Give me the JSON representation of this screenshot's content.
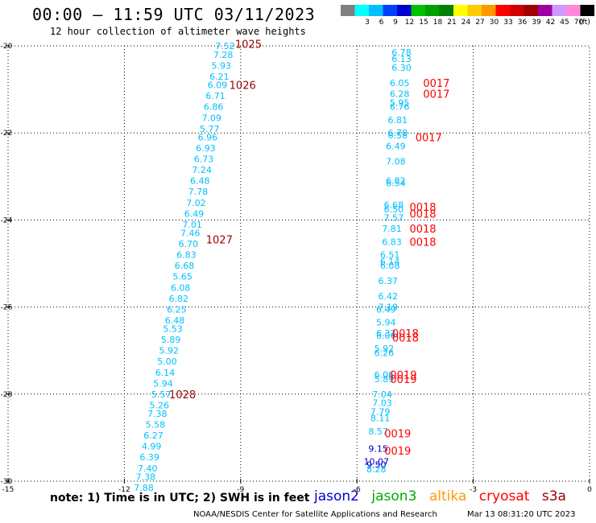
{
  "title": "00:00 — 11:59 UTC 03/11/2023",
  "subtitle": "12 hour collection of altimeter wave heights",
  "legend": {
    "unit": "(ft)",
    "items": [
      {
        "label": "",
        "color": "#808080"
      },
      {
        "label": "3",
        "color": "#00ffff"
      },
      {
        "label": "6",
        "color": "#00bfff"
      },
      {
        "label": "9",
        "color": "#0040ff"
      },
      {
        "label": "12",
        "color": "#0000cd"
      },
      {
        "label": "15",
        "color": "#00c000"
      },
      {
        "label": "18",
        "color": "#00a000"
      },
      {
        "label": "21",
        "color": "#008000"
      },
      {
        "label": "24",
        "color": "#ffff00"
      },
      {
        "label": "27",
        "color": "#ffcc00"
      },
      {
        "label": "30",
        "color": "#ff9900"
      },
      {
        "label": "33",
        "color": "#ff0000"
      },
      {
        "label": "36",
        "color": "#d00000"
      },
      {
        "label": "39",
        "color": "#a00000"
      },
      {
        "label": "42",
        "color": "#a000a0"
      },
      {
        "label": "45",
        "color": "#cc99ff"
      },
      {
        "label": "70",
        "color": "#ff88dd"
      },
      {
        "label": "",
        "color": "#000000"
      }
    ]
  },
  "note": "note: 1) Time is in UTC; 2) SWH is in feet",
  "satellites": [
    {
      "name": "jason2",
      "color": "#0000cc"
    },
    {
      "name": "jason3",
      "color": "#00aa00"
    },
    {
      "name": "altika",
      "color": "#ff9900"
    },
    {
      "name": "cryosat",
      "color": "#ff0000"
    },
    {
      "name": "s3a",
      "color": "#990000"
    }
  ],
  "footer_left": "NOAA/NESDIS Center for Satellite Applications and Research",
  "footer_right": "Mar 13 08:31:20 UTC 2023",
  "chart_data": {
    "type": "scatter",
    "xlim": [
      -15,
      0
    ],
    "ylim": [
      -30,
      -20
    ],
    "x_ticks": [
      -15,
      -12,
      -9,
      -6,
      -3,
      0
    ],
    "y_ticks": [
      -20,
      -22,
      -24,
      -26,
      -28,
      -30
    ],
    "grid": true,
    "pass_time_color": "#990000",
    "pass_time_color_b": "#ff0000",
    "swh_color": "#00bfff",
    "series": [
      {
        "points": [
          {
            "x": -9.4,
            "y": -20.0,
            "v": "7.52"
          },
          {
            "x": -9.45,
            "y": -20.2,
            "v": "7.28"
          },
          {
            "x": -9.5,
            "y": -20.45,
            "v": "5.93"
          },
          {
            "x": -9.55,
            "y": -20.7,
            "v": "6.21"
          },
          {
            "x": -9.6,
            "y": -20.9,
            "v": "6.09"
          },
          {
            "x": -9.65,
            "y": -21.15,
            "v": "6.71"
          },
          {
            "x": -9.7,
            "y": -21.4,
            "v": "6.86"
          },
          {
            "x": -9.75,
            "y": -21.65,
            "v": "7.09"
          },
          {
            "x": -9.8,
            "y": -21.9,
            "v": "5.77"
          },
          {
            "x": -9.85,
            "y": -22.1,
            "v": "6.96"
          },
          {
            "x": -9.9,
            "y": -22.35,
            "v": "6.93"
          },
          {
            "x": -9.95,
            "y": -22.6,
            "v": "6.73"
          },
          {
            "x": -10.0,
            "y": -22.85,
            "v": "7.24"
          },
          {
            "x": -10.05,
            "y": -23.1,
            "v": "6.48"
          },
          {
            "x": -10.1,
            "y": -23.35,
            "v": "7.78"
          },
          {
            "x": -10.15,
            "y": -23.6,
            "v": "7.02"
          },
          {
            "x": -10.2,
            "y": -23.85,
            "v": "6.49"
          },
          {
            "x": -10.25,
            "y": -24.1,
            "v": "7.01"
          },
          {
            "x": -10.3,
            "y": -24.3,
            "v": "7.46"
          },
          {
            "x": -10.35,
            "y": -24.55,
            "v": "6.70"
          },
          {
            "x": -10.4,
            "y": -24.8,
            "v": "6.83"
          },
          {
            "x": -10.45,
            "y": -25.05,
            "v": "6.68"
          },
          {
            "x": -10.5,
            "y": -25.3,
            "v": "5.65"
          },
          {
            "x": -10.55,
            "y": -25.55,
            "v": "6.08"
          },
          {
            "x": -10.6,
            "y": -25.8,
            "v": "6.82"
          },
          {
            "x": -10.65,
            "y": -26.05,
            "v": "6.25"
          },
          {
            "x": -10.7,
            "y": -26.3,
            "v": "6.48"
          },
          {
            "x": -10.75,
            "y": -26.5,
            "v": "5.53"
          },
          {
            "x": -10.8,
            "y": -26.75,
            "v": "5.89"
          },
          {
            "x": -10.85,
            "y": -27.0,
            "v": "5.92"
          },
          {
            "x": -10.9,
            "y": -27.25,
            "v": "5.00"
          },
          {
            "x": -10.95,
            "y": -27.5,
            "v": "6.14"
          },
          {
            "x": -11.0,
            "y": -27.75,
            "v": "5.94"
          },
          {
            "x": -11.05,
            "y": -28.0,
            "v": "5.57"
          },
          {
            "x": -11.1,
            "y": -28.25,
            "v": "5.26"
          },
          {
            "x": -11.15,
            "y": -28.45,
            "v": "7.38"
          },
          {
            "x": -11.2,
            "y": -28.7,
            "v": "5.58"
          },
          {
            "x": -11.25,
            "y": -28.95,
            "v": "6.27"
          },
          {
            "x": -11.3,
            "y": -29.2,
            "v": "4.99"
          },
          {
            "x": -11.35,
            "y": -29.45,
            "v": "6.39"
          },
          {
            "x": -11.4,
            "y": -29.7,
            "v": "7.40"
          },
          {
            "x": -11.45,
            "y": -29.9,
            "v": "7.38"
          },
          {
            "x": -11.5,
            "y": -30.15,
            "v": "7.88"
          }
        ]
      },
      {
        "points": [
          {
            "x": -4.85,
            "y": -20.15,
            "v": "6.78"
          },
          {
            "x": -4.85,
            "y": -20.3,
            "v": "6.13"
          },
          {
            "x": -4.85,
            "y": -20.5,
            "v": "6.30"
          },
          {
            "x": -4.9,
            "y": -20.85,
            "v": "6.05"
          },
          {
            "x": -4.9,
            "y": -21.1,
            "v": "6.28"
          },
          {
            "x": -4.9,
            "y": -21.3,
            "v": "5.95"
          },
          {
            "x": -4.9,
            "y": -21.4,
            "v": "6.76"
          },
          {
            "x": -4.95,
            "y": -21.7,
            "v": "6.81"
          },
          {
            "x": -4.95,
            "y": -22.0,
            "v": "6.78"
          },
          {
            "x": -4.95,
            "y": -22.05,
            "v": "6.58"
          },
          {
            "x": -5.0,
            "y": -22.3,
            "v": "6.49"
          },
          {
            "x": -5.0,
            "y": -22.65,
            "v": "7.08"
          },
          {
            "x": -5.0,
            "y": -23.1,
            "v": "6.82"
          },
          {
            "x": -5.0,
            "y": -23.15,
            "v": "6.54"
          },
          {
            "x": -5.05,
            "y": -23.65,
            "v": "6.68"
          },
          {
            "x": -5.05,
            "y": -23.75,
            "v": "6.50"
          },
          {
            "x": -5.05,
            "y": -23.95,
            "v": "7.57"
          },
          {
            "x": -5.1,
            "y": -24.2,
            "v": "7.81"
          },
          {
            "x": -5.1,
            "y": -24.5,
            "v": "6.83"
          },
          {
            "x": -5.15,
            "y": -24.8,
            "v": "6.51"
          },
          {
            "x": -5.15,
            "y": -24.95,
            "v": "6.14"
          },
          {
            "x": -5.15,
            "y": -25.05,
            "v": "6.08"
          },
          {
            "x": -5.2,
            "y": -25.4,
            "v": "6.37"
          },
          {
            "x": -5.2,
            "y": -25.75,
            "v": "6.42"
          },
          {
            "x": -5.2,
            "y": -26.0,
            "v": "7.19"
          },
          {
            "x": -5.25,
            "y": -26.05,
            "v": "6.49"
          },
          {
            "x": -5.25,
            "y": -26.35,
            "v": "5.94"
          },
          {
            "x": -5.25,
            "y": -26.6,
            "v": "6.32"
          },
          {
            "x": -5.25,
            "y": -26.65,
            "v": "6.06"
          },
          {
            "x": -5.3,
            "y": -26.95,
            "v": "5.92"
          },
          {
            "x": -5.3,
            "y": -27.05,
            "v": "6.26"
          },
          {
            "x": -5.3,
            "y": -27.55,
            "v": "6.06"
          },
          {
            "x": -5.3,
            "y": -27.65,
            "v": "5.89"
          },
          {
            "x": -5.35,
            "y": -28.0,
            "v": "7.04"
          },
          {
            "x": -5.35,
            "y": -28.2,
            "v": "7.03"
          },
          {
            "x": -5.4,
            "y": -28.4,
            "v": "7.79"
          },
          {
            "x": -5.4,
            "y": -28.55,
            "v": "8.11"
          },
          {
            "x": -5.45,
            "y": -28.85,
            "v": "8.57"
          },
          {
            "x": -5.45,
            "y": -29.25,
            "v": "9.15",
            "c": "#0000cd"
          },
          {
            "x": -5.5,
            "y": -29.55,
            "v": "10.07",
            "c": "#0000cd"
          },
          {
            "x": -5.5,
            "y": -29.62,
            "v": "9.50",
            "c": "#0000cd"
          },
          {
            "x": -5.5,
            "y": -29.72,
            "v": "8.28"
          }
        ]
      }
    ],
    "pass_times": [
      {
        "x": -8.8,
        "y": -19.95,
        "t": "1025",
        "c": "#990000"
      },
      {
        "x": -8.95,
        "y": -20.9,
        "t": "1026",
        "c": "#990000"
      },
      {
        "x": -9.55,
        "y": -24.45,
        "t": "1027",
        "c": "#990000"
      },
      {
        "x": -10.5,
        "y": -28.0,
        "t": "1028",
        "c": "#990000"
      },
      {
        "x": -3.95,
        "y": -20.85,
        "t": "0017",
        "c": "#ff0000"
      },
      {
        "x": -3.95,
        "y": -21.1,
        "t": "0017",
        "c": "#ff0000"
      },
      {
        "x": -4.15,
        "y": -22.1,
        "t": "0017",
        "c": "#ff0000"
      },
      {
        "x": -4.3,
        "y": -23.7,
        "t": "0018",
        "c": "#ff0000"
      },
      {
        "x": -4.3,
        "y": -23.85,
        "t": "0018",
        "c": "#ff0000"
      },
      {
        "x": -4.3,
        "y": -24.2,
        "t": "0018",
        "c": "#ff0000"
      },
      {
        "x": -4.3,
        "y": -24.5,
        "t": "0018",
        "c": "#ff0000"
      },
      {
        "x": -4.75,
        "y": -26.6,
        "t": "0018",
        "c": "#ff0000"
      },
      {
        "x": -4.75,
        "y": -26.7,
        "t": "0018",
        "c": "#ff0000"
      },
      {
        "x": -4.8,
        "y": -27.55,
        "t": "0019",
        "c": "#ff0000"
      },
      {
        "x": -4.8,
        "y": -27.65,
        "t": "0019",
        "c": "#ff0000"
      },
      {
        "x": -4.95,
        "y": -28.9,
        "t": "0019",
        "c": "#ff0000"
      },
      {
        "x": -4.95,
        "y": -29.3,
        "t": "0019",
        "c": "#ff0000"
      }
    ]
  }
}
